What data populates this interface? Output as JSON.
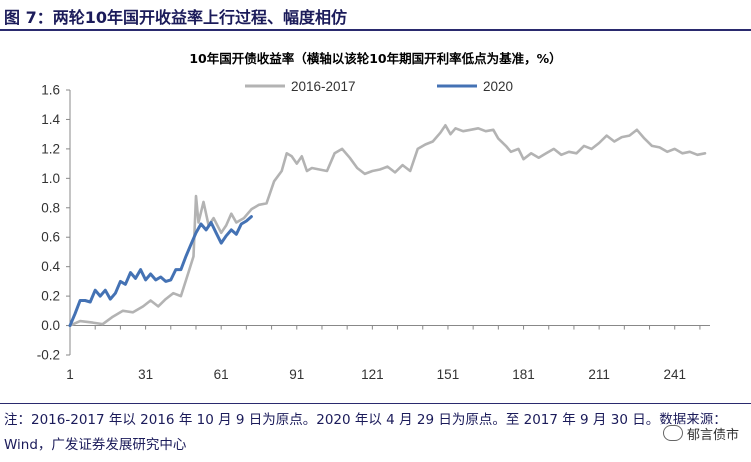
{
  "header": {
    "title": "图 7：两轮10年国开收益率上行过程、幅度相仿"
  },
  "chart_data": {
    "type": "line",
    "title": "10年国开债收益率（横轴以该轮10年期国开利率低点为基准，%）",
    "xlabel": "",
    "ylabel": "",
    "xlim": [
      1,
      255
    ],
    "ylim": [
      -0.2,
      1.6
    ],
    "x_ticks": [
      1,
      31,
      61,
      91,
      121,
      151,
      181,
      211,
      241
    ],
    "y_ticks": [
      -0.2,
      0.0,
      0.2,
      0.4,
      0.6,
      0.8,
      1.0,
      1.2,
      1.4,
      1.6
    ],
    "y_tick_labels": [
      "-0.2",
      "0.0",
      "0.2",
      "0.4",
      "0.6",
      "0.8",
      "1.0",
      "1.2",
      "1.4",
      "1.6"
    ],
    "grid": false,
    "legend_position": "top",
    "series": [
      {
        "name": "2016-2017",
        "color": "#b3b3b3",
        "points": [
          [
            1,
            0.0
          ],
          [
            5,
            0.03
          ],
          [
            10,
            0.02
          ],
          [
            14,
            0.01
          ],
          [
            18,
            0.06
          ],
          [
            22,
            0.1
          ],
          [
            26,
            0.09
          ],
          [
            30,
            0.13
          ],
          [
            33,
            0.17
          ],
          [
            36,
            0.13
          ],
          [
            39,
            0.18
          ],
          [
            42,
            0.22
          ],
          [
            45,
            0.2
          ],
          [
            48,
            0.36
          ],
          [
            50,
            0.47
          ],
          [
            51,
            0.88
          ],
          [
            52,
            0.7
          ],
          [
            54,
            0.84
          ],
          [
            56,
            0.68
          ],
          [
            58,
            0.73
          ],
          [
            61,
            0.63
          ],
          [
            63,
            0.68
          ],
          [
            65,
            0.76
          ],
          [
            67,
            0.7
          ],
          [
            70,
            0.73
          ],
          [
            73,
            0.79
          ],
          [
            76,
            0.82
          ],
          [
            79,
            0.83
          ],
          [
            82,
            0.98
          ],
          [
            85,
            1.05
          ],
          [
            87,
            1.17
          ],
          [
            89,
            1.15
          ],
          [
            91,
            1.1
          ],
          [
            93,
            1.15
          ],
          [
            95,
            1.05
          ],
          [
            97,
            1.07
          ],
          [
            100,
            1.06
          ],
          [
            103,
            1.05
          ],
          [
            106,
            1.17
          ],
          [
            109,
            1.2
          ],
          [
            112,
            1.14
          ],
          [
            115,
            1.07
          ],
          [
            118,
            1.03
          ],
          [
            121,
            1.05
          ],
          [
            124,
            1.06
          ],
          [
            127,
            1.08
          ],
          [
            130,
            1.04
          ],
          [
            133,
            1.09
          ],
          [
            136,
            1.05
          ],
          [
            139,
            1.2
          ],
          [
            142,
            1.23
          ],
          [
            145,
            1.25
          ],
          [
            148,
            1.31
          ],
          [
            150,
            1.36
          ],
          [
            152,
            1.3
          ],
          [
            154,
            1.34
          ],
          [
            157,
            1.32
          ],
          [
            160,
            1.33
          ],
          [
            163,
            1.34
          ],
          [
            166,
            1.32
          ],
          [
            169,
            1.33
          ],
          [
            171,
            1.27
          ],
          [
            174,
            1.22
          ],
          [
            176,
            1.18
          ],
          [
            179,
            1.2
          ],
          [
            181,
            1.13
          ],
          [
            184,
            1.17
          ],
          [
            187,
            1.14
          ],
          [
            190,
            1.17
          ],
          [
            193,
            1.2
          ],
          [
            196,
            1.16
          ],
          [
            199,
            1.18
          ],
          [
            202,
            1.17
          ],
          [
            205,
            1.22
          ],
          [
            208,
            1.2
          ],
          [
            211,
            1.24
          ],
          [
            214,
            1.29
          ],
          [
            217,
            1.25
          ],
          [
            220,
            1.28
          ],
          [
            223,
            1.29
          ],
          [
            226,
            1.33
          ],
          [
            229,
            1.27
          ],
          [
            232,
            1.22
          ],
          [
            235,
            1.21
          ],
          [
            238,
            1.18
          ],
          [
            241,
            1.2
          ],
          [
            244,
            1.17
          ],
          [
            247,
            1.18
          ],
          [
            250,
            1.16
          ],
          [
            253,
            1.17
          ]
        ]
      },
      {
        "name": "2020",
        "color": "#4472b4",
        "points": [
          [
            1,
            0.0
          ],
          [
            3,
            0.08
          ],
          [
            5,
            0.17
          ],
          [
            7,
            0.17
          ],
          [
            9,
            0.16
          ],
          [
            11,
            0.24
          ],
          [
            13,
            0.2
          ],
          [
            15,
            0.24
          ],
          [
            17,
            0.18
          ],
          [
            19,
            0.22
          ],
          [
            21,
            0.3
          ],
          [
            23,
            0.28
          ],
          [
            25,
            0.36
          ],
          [
            27,
            0.32
          ],
          [
            29,
            0.38
          ],
          [
            31,
            0.31
          ],
          [
            33,
            0.35
          ],
          [
            35,
            0.31
          ],
          [
            37,
            0.33
          ],
          [
            39,
            0.3
          ],
          [
            41,
            0.31
          ],
          [
            43,
            0.38
          ],
          [
            45,
            0.38
          ],
          [
            47,
            0.47
          ],
          [
            49,
            0.55
          ],
          [
            51,
            0.63
          ],
          [
            53,
            0.69
          ],
          [
            55,
            0.65
          ],
          [
            57,
            0.7
          ],
          [
            59,
            0.63
          ],
          [
            61,
            0.56
          ],
          [
            63,
            0.61
          ],
          [
            65,
            0.65
          ],
          [
            67,
            0.62
          ],
          [
            69,
            0.69
          ],
          [
            71,
            0.71
          ],
          [
            73,
            0.74
          ]
        ]
      }
    ]
  },
  "footer": {
    "note": "注：2016-2017 年以 2016 年 10 月 9 日为原点。2020 年以 4 月 29 日为原点。至 2017 年 9 月 30 日。数据来源：Wind，广发证券发展研究中心",
    "watermark": "郁言债市"
  }
}
